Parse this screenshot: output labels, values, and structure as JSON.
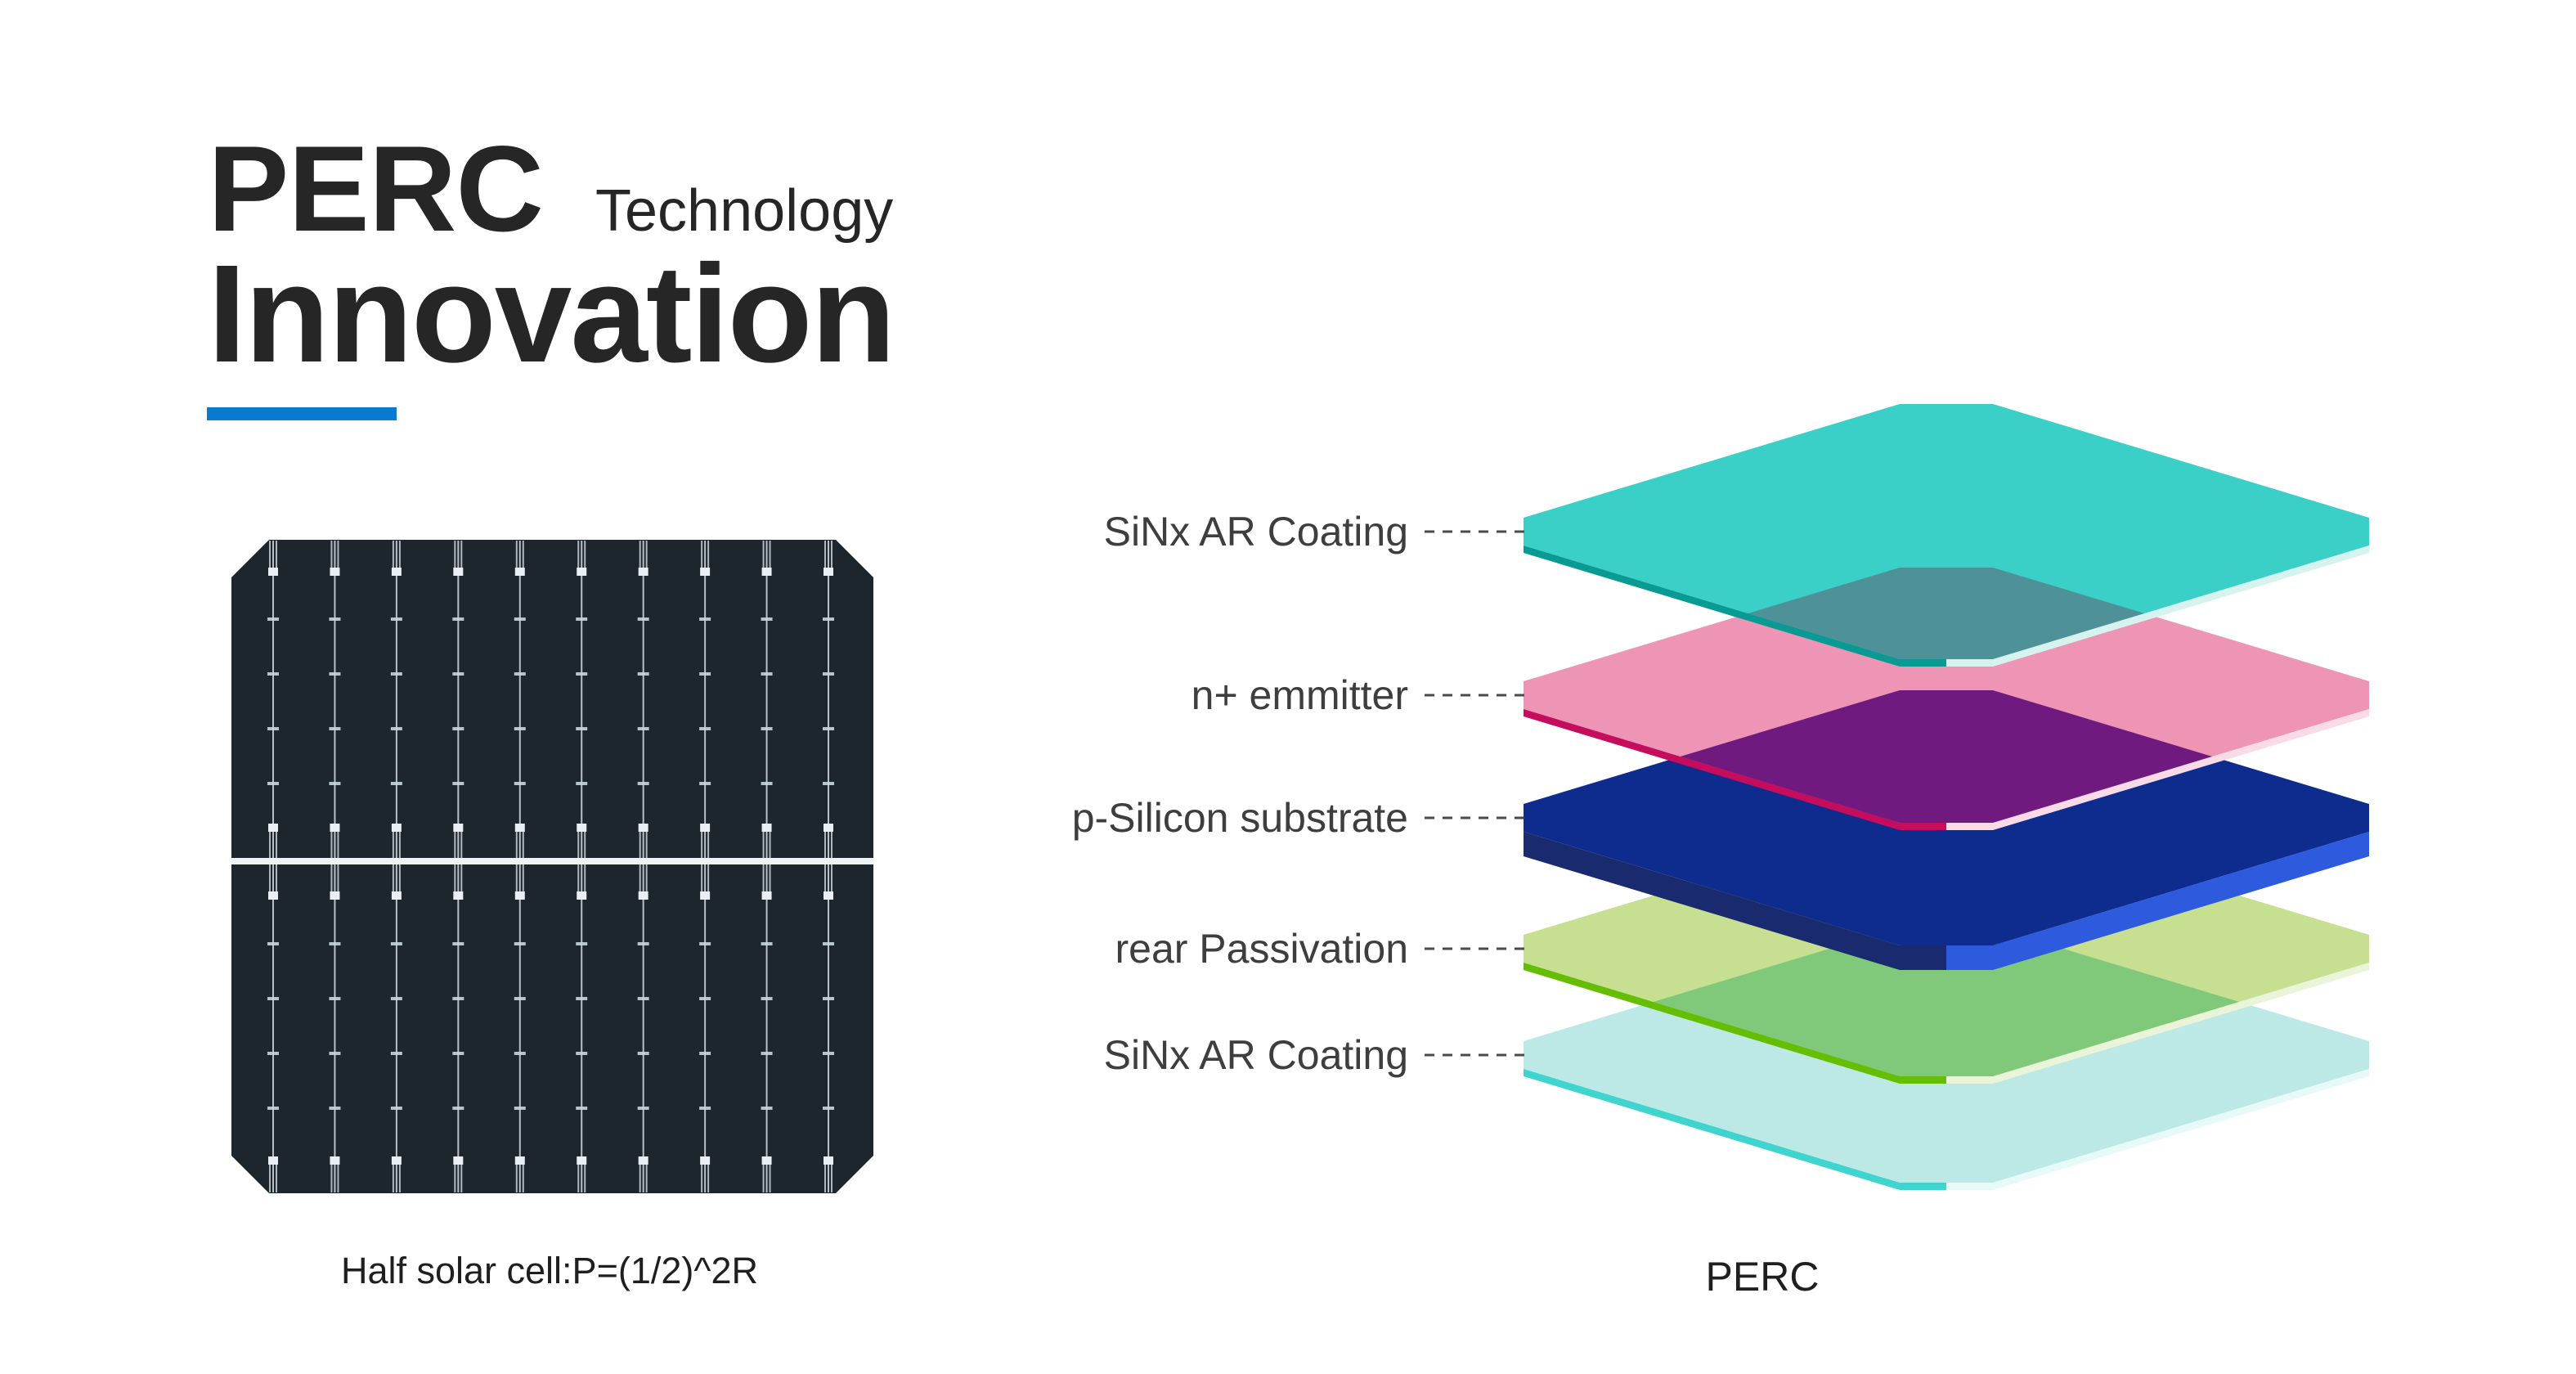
{
  "title": {
    "main": "PERC",
    "sub": "Technology",
    "second_line": "Innovation",
    "text_color": "#262626",
    "accent_color": "#0a79d0"
  },
  "solar_cell": {
    "caption": "Half solar cell:P=(1/2)^2R",
    "body_color": "#1c262c",
    "busbar_color": "#dfe8ec",
    "pad_color": "#e9eff2",
    "tick_color": "#c9d6dc",
    "divider_color": "#eef3f4",
    "busbar_count": 10,
    "ticks_per_half": 4
  },
  "stack": {
    "caption": "PERC",
    "label_color": "#3e3e3e",
    "leader_color": "#4b4b4b",
    "layers": [
      {
        "label": "SiNx AR Coating",
        "fill": "#3acfc7",
        "edge": "#0a9a94",
        "edge_light": "#d6f3f0",
        "thickness": 9
      },
      {
        "label": "n+ emmitter",
        "fill": "#ee94b4",
        "edge": "#c60c5c",
        "edge_light": "#f8dbe7",
        "thickness": 9
      },
      {
        "label": "p-Silicon substrate",
        "fill": "#0e2b8e",
        "edge": "#1a2a6e",
        "edge_light": "#2e5ade",
        "thickness": 30
      },
      {
        "label": "rear Passivation",
        "fill": "#c6df90",
        "edge": "#65bd04",
        "edge_light": "#e9f4d9",
        "thickness": 9
      },
      {
        "label": "SiNx AR Coating",
        "fill": "#bce9e6",
        "edge": "#3fd4cd",
        "edge_light": "#e8faf8",
        "thickness": 9
      }
    ],
    "overlaps": [
      {
        "upper": 0,
        "lower": 1,
        "color": "#4f9199"
      },
      {
        "upper": 1,
        "lower": 2,
        "color": "#701a80"
      },
      {
        "upper": 3,
        "lower": 4,
        "color": "#80c97a"
      }
    ]
  }
}
